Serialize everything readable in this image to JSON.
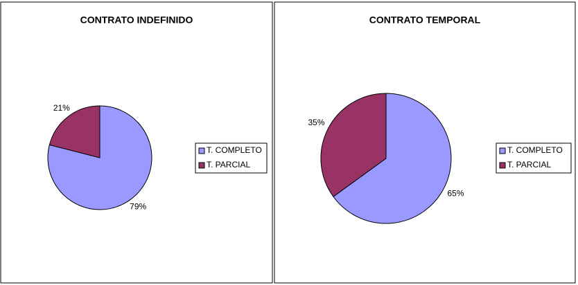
{
  "chart_data": [
    {
      "type": "pie",
      "title": "CONTRATO INDEFINIDO",
      "categories": [
        "T. COMPLETO",
        "T. PARCIAL"
      ],
      "values": [
        79,
        21
      ],
      "value_labels": [
        "79%",
        "21%"
      ],
      "colors": [
        "#9999ff",
        "#993366"
      ]
    },
    {
      "type": "pie",
      "title": "CONTRATO TEMPORAL",
      "categories": [
        "T. COMPLETO",
        "T. PARCIAL"
      ],
      "values": [
        65,
        35
      ],
      "value_labels": [
        "65%",
        "35%"
      ],
      "colors": [
        "#9999ff",
        "#993366"
      ]
    }
  ]
}
